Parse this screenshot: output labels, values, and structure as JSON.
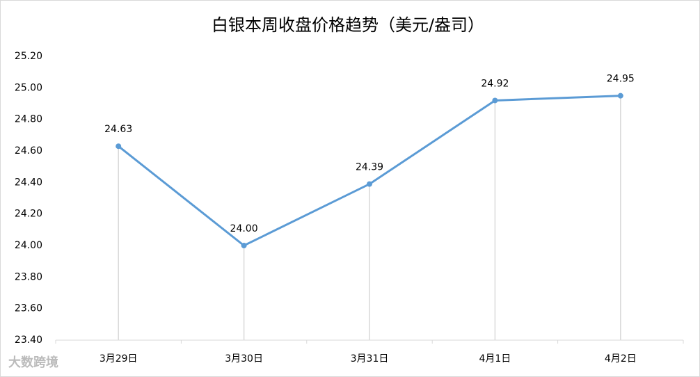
{
  "chart_data": {
    "type": "line",
    "title": "白银本周收盘价格趋势（美元/盎司）",
    "categories": [
      "3月29日",
      "3月30日",
      "3月31日",
      "4月1日",
      "4月2日"
    ],
    "series": [
      {
        "name": "收盘价格",
        "color": "#5b9bd5",
        "values": [
          24.63,
          24.0,
          24.39,
          24.92,
          24.95
        ],
        "value_labels": [
          "24.63",
          "24.00",
          "24.39",
          "24.92",
          "24.95"
        ]
      }
    ],
    "ylim": [
      23.4,
      25.2
    ],
    "yticks": [
      {
        "value": 23.4,
        "label": "23.40"
      },
      {
        "value": 23.6,
        "label": "23.60"
      },
      {
        "value": 23.8,
        "label": "23.80"
      },
      {
        "value": 24.0,
        "label": "24.00"
      },
      {
        "value": 24.2,
        "label": "24.20"
      },
      {
        "value": 24.4,
        "label": "24.40"
      },
      {
        "value": 24.6,
        "label": "24.60"
      },
      {
        "value": 24.8,
        "label": "24.80"
      },
      {
        "value": 25.0,
        "label": "25.00"
      },
      {
        "value": 25.2,
        "label": "25.20"
      }
    ],
    "drop_lines": true,
    "watermark": "大数跨境"
  }
}
